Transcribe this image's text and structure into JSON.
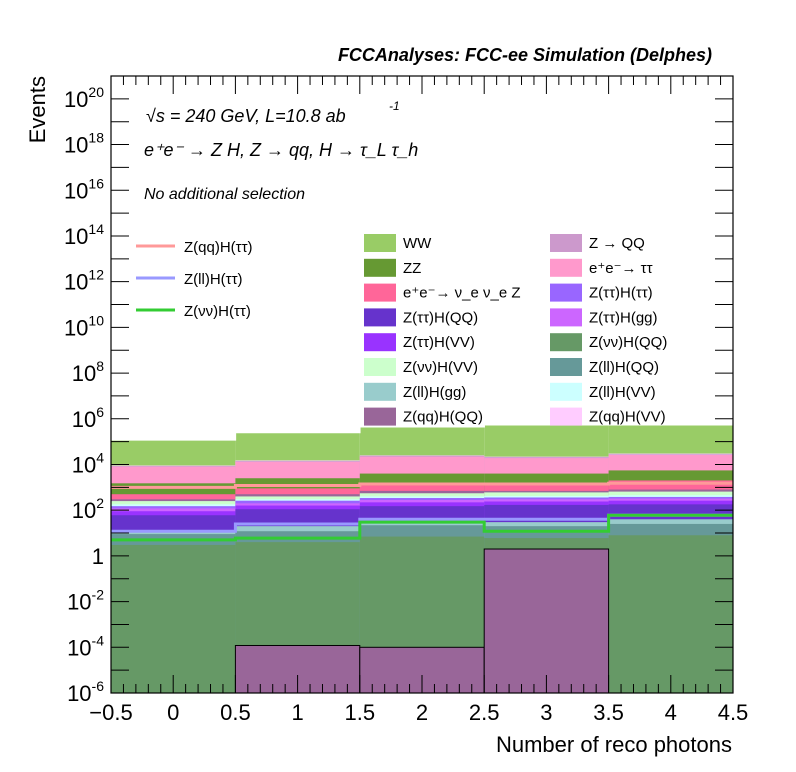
{
  "chart_data": {
    "type": "bar",
    "title": "FCCAnalyses: FCC-ee Simulation (Delphes)",
    "energy_line": "√s = 240 GeV, L=10.8 ab",
    "lumi_exp": "-1",
    "process_line": "e⁺e⁻ → Z H, Z → qq, H → τ_L τ_h",
    "selection_line": "No additional selection",
    "xlabel": "Number of reco photons",
    "ylabel": "Events",
    "xlim": [
      -0.5,
      4.5
    ],
    "ylim": [
      1e-06,
      1e+21
    ],
    "yscale": "log",
    "stacked": true,
    "bin_edges": [
      -0.5,
      0.5,
      1.5,
      2.5,
      3.5,
      4.5
    ],
    "x_ticks": [
      "−0.5",
      "0",
      "0.5",
      "1",
      "1.5",
      "2",
      "2.5",
      "3",
      "3.5",
      "4",
      "4.5"
    ],
    "y_ticks": [
      {
        "base": "10",
        "exp": "-6",
        "v": 1e-06
      },
      {
        "base": "10",
        "exp": "-4",
        "v": 0.0001
      },
      {
        "base": "10",
        "exp": "-2",
        "v": 0.01
      },
      {
        "base": "1",
        "exp": "",
        "v": 1
      },
      {
        "base": "10",
        "exp": "2",
        "v": 100.0
      },
      {
        "base": "10",
        "exp": "4",
        "v": 10000.0
      },
      {
        "base": "10",
        "exp": "6",
        "v": 1000000.0
      },
      {
        "base": "10",
        "exp": "8",
        "v": 100000000.0
      },
      {
        "base": "10",
        "exp": "10",
        "v": 10000000000.0
      },
      {
        "base": "10",
        "exp": "12",
        "v": 1000000000000.0
      },
      {
        "base": "10",
        "exp": "14",
        "v": 100000000000000.0
      },
      {
        "base": "10",
        "exp": "16",
        "v": 1e+16
      },
      {
        "base": "10",
        "exp": "18",
        "v": 1e+18
      },
      {
        "base": "10",
        "exp": "20",
        "v": 1e+20
      }
    ],
    "stack_tops": [
      {
        "name": "WW",
        "color": "#99cc66",
        "values": [
          120000,
          250000,
          450000,
          550000,
          550000
        ]
      },
      {
        "name": "Z(qq)H(VV)",
        "color": "#ffccff",
        "values": [
          9000,
          15000,
          25000,
          22000,
          30000
        ]
      },
      {
        "name": "Z → QQ",
        "color": "#cc99cc",
        "values": [
          8500,
          14000,
          24000,
          21000,
          28000
        ]
      },
      {
        "name": "e⁺e⁻→ ττ",
        "color": "#ff99cc",
        "values": [
          8000,
          13000,
          22000,
          19000,
          26000
        ]
      },
      {
        "name": "ZZ",
        "color": "#669933",
        "values": [
          1500,
          2500,
          4000,
          4000,
          5500
        ]
      },
      {
        "name": "e⁺e⁻→ ν_e ν_e Z",
        "color": "#ff6699",
        "values": [
          500,
          900,
          1200,
          1500,
          2000
        ]
      },
      {
        "name": "Z(qq)H(QQ)",
        "color": "#996699",
        "values": [
          300,
          500,
          700,
          700,
          800
        ]
      },
      {
        "name": "Z(vv)H(VV)",
        "color": "#ccffcc",
        "values": [
          250,
          400,
          550,
          600,
          650
        ]
      },
      {
        "name": "Z(ll)H(VV)",
        "color": "#ccffff",
        "values": [
          180,
          300,
          400,
          420,
          450
        ]
      },
      {
        "name": "Z(ττ)H(ττ)",
        "color": "#9966ff",
        "values": [
          150,
          260,
          340,
          360,
          380
        ]
      },
      {
        "name": "Z(ττ)H(gg)",
        "color": "#cc66ff",
        "values": [
          120,
          200,
          280,
          300,
          320
        ]
      },
      {
        "name": "Z(ττ)H(VV)",
        "color": "#9933ff",
        "values": [
          90,
          160,
          220,
          240,
          260
        ]
      },
      {
        "name": "Z(ττ)H(QQ)",
        "color": "#6633cc",
        "values": [
          60,
          110,
          150,
          170,
          180
        ]
      },
      {
        "name": "Z(ll)H(gg)",
        "color": "#99cccc",
        "values": [
          12,
          20,
          35,
          30,
          40
        ]
      },
      {
        "name": "Z(ll)H(QQ)",
        "color": "#669999",
        "values": [
          9,
          12,
          22,
          20,
          25
        ]
      },
      {
        "name": "Z(vv)H(QQ)",
        "color": "#669966",
        "values": [
          3,
          4,
          7,
          6,
          8
        ]
      }
    ],
    "bottom_layer": {
      "name": "Z(qq)H(QQ)",
      "color": "#996699",
      "values": [
        1e-06,
        0.00012,
        0.0001,
        2,
        1e-06
      ]
    },
    "signal_lines": [
      {
        "name": "Z(qq)H(ττ)",
        "color": "#ff9999",
        "values": [
          1000,
          1200,
          1400,
          1400,
          1500
        ]
      },
      {
        "name": "Z(ll)H(ττ)",
        "color": "#9999ff",
        "values": [
          12,
          25,
          40,
          40,
          60
        ]
      },
      {
        "name": "Z(νν)H(ττ)",
        "color": "#33cc33",
        "values": [
          5,
          6,
          30,
          12,
          60
        ]
      }
    ],
    "legend_signal": [
      {
        "label": "Z(qq)H(ττ)",
        "color": "#ff9999"
      },
      {
        "label": "Z(ll)H(ττ)",
        "color": "#9999ff"
      },
      {
        "label": "Z(νν)H(ττ)",
        "color": "#33cc33"
      }
    ],
    "legend_col1": [
      {
        "label": "WW",
        "color": "#99cc66"
      },
      {
        "label": "ZZ",
        "color": "#669933"
      },
      {
        "label": "e⁺e⁻→ ν_e ν_e Z",
        "color": "#ff6699"
      },
      {
        "label": "Z(ττ)H(QQ)",
        "color": "#6633cc"
      },
      {
        "label": "Z(ττ)H(VV)",
        "color": "#9933ff"
      },
      {
        "label": "Z(νν)H(VV)",
        "color": "#ccffcc"
      },
      {
        "label": "Z(ll)H(gg)",
        "color": "#99cccc"
      },
      {
        "label": "Z(qq)H(QQ)",
        "color": "#996699"
      }
    ],
    "legend_col2": [
      {
        "label": "Z → QQ",
        "color": "#cc99cc"
      },
      {
        "label": "e⁺e⁻→ ττ",
        "color": "#ff99cc"
      },
      {
        "label": "Z(ττ)H(ττ)",
        "color": "#9966ff"
      },
      {
        "label": "Z(ττ)H(gg)",
        "color": "#cc66ff"
      },
      {
        "label": "Z(νν)H(QQ)",
        "color": "#669966"
      },
      {
        "label": "Z(ll)H(QQ)",
        "color": "#669999"
      },
      {
        "label": "Z(ll)H(VV)",
        "color": "#ccffff"
      },
      {
        "label": "Z(qq)H(VV)",
        "color": "#ffccff"
      }
    ]
  }
}
